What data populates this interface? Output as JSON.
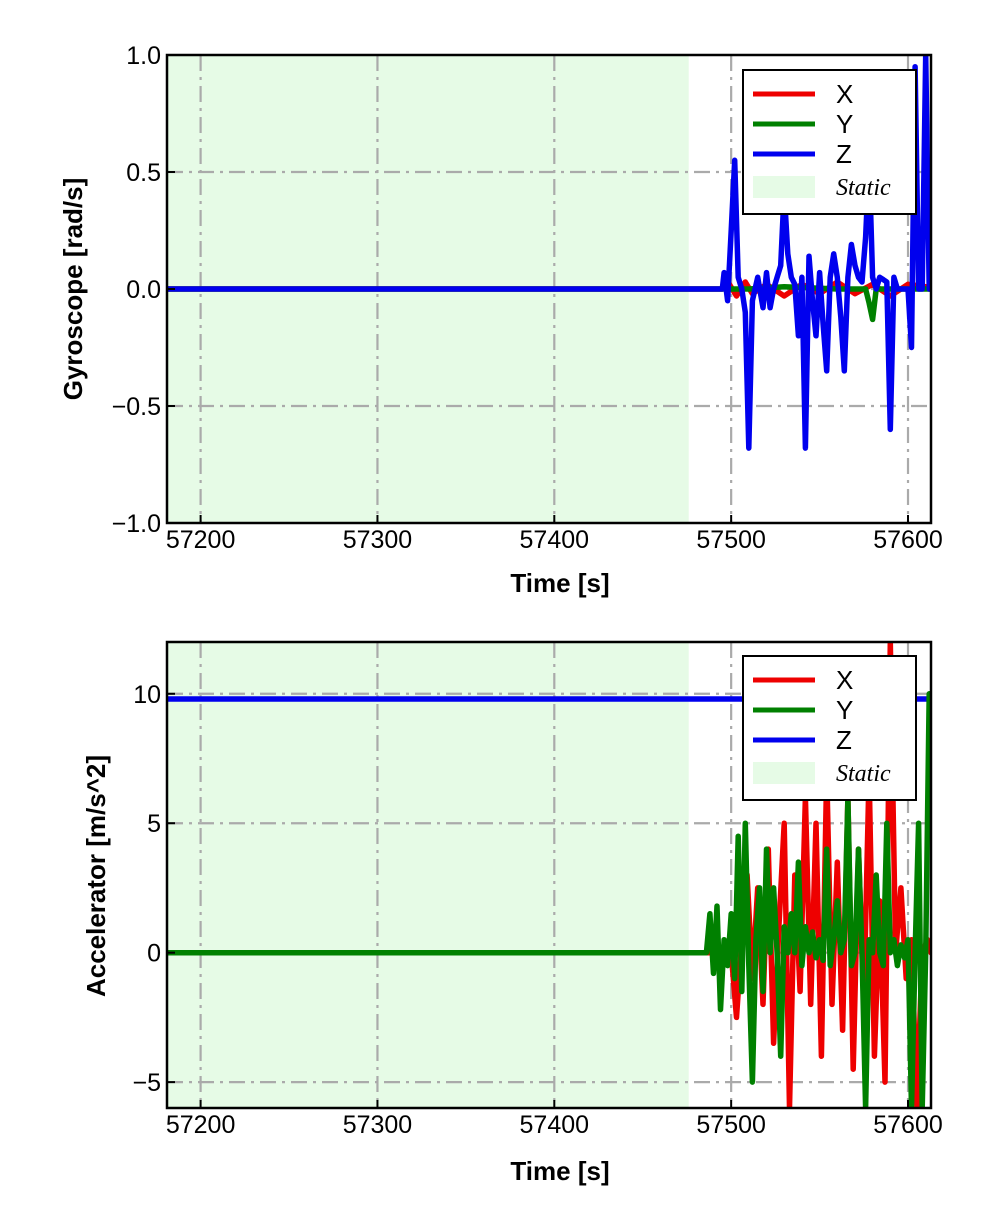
{
  "colors": {
    "X": "#ee0000",
    "Y": "#008000",
    "Z": "#0000ee",
    "static": "#e6fbe6",
    "grid": "#aaaaaa"
  },
  "chart_data": [
    {
      "type": "line",
      "ylabel": "Gyroscope [rad/s]",
      "xlabel": "Time [s]",
      "xlim": [
        57181,
        57613
      ],
      "ylim": [
        -1.0,
        1.0
      ],
      "xticks": [
        57200,
        57300,
        57400,
        57500,
        57600
      ],
      "xtick_labels": [
        "57200",
        "57300",
        "57400",
        "57500",
        "57600"
      ],
      "yticks": [
        -1.0,
        -0.5,
        0.0,
        0.5,
        1.0
      ],
      "ytick_labels": [
        "−1.0",
        "−0.5",
        "0.0",
        "0.5",
        "1.0"
      ],
      "grid": true,
      "legend_position": "top-right",
      "static_region": [
        57181,
        57476
      ],
      "legend": [
        "X",
        "Y",
        "Z",
        "Static"
      ],
      "series": [
        {
          "name": "X",
          "color": "#ee0000",
          "x": [
            57181,
            57495,
            57499,
            57503,
            57508,
            57512,
            57520,
            57530,
            57540,
            57550,
            57560,
            57570,
            57580,
            57590,
            57600,
            57610,
            57612
          ],
          "y": [
            0,
            0,
            0.02,
            -0.03,
            0.03,
            -0.02,
            0.02,
            -0.03,
            0.02,
            -0.02,
            0.03,
            -0.02,
            0.02,
            -0.03,
            0.02,
            0.01,
            0
          ]
        },
        {
          "name": "Y",
          "color": "#008000",
          "x": [
            57181,
            57495,
            57510,
            57530,
            57560,
            57576,
            57578,
            57580,
            57582,
            57595,
            57612
          ],
          "y": [
            0,
            0,
            0,
            0.01,
            0,
            0,
            -0.06,
            -0.13,
            0,
            0,
            0
          ]
        },
        {
          "name": "Z",
          "color": "#0000ee",
          "x": [
            57181,
            57495,
            57496,
            57498,
            57500,
            57502,
            57504,
            57506,
            57508,
            57510,
            57512,
            57515,
            57518,
            57520,
            57522,
            57524,
            57526,
            57528,
            57530,
            57532,
            57534,
            57536,
            57538,
            57540,
            57542,
            57544,
            57546,
            57548,
            57550,
            57552,
            57554,
            57556,
            57558,
            57560,
            57562,
            57564,
            57566,
            57568,
            57570,
            57572,
            57574,
            57576,
            57578,
            57580,
            57582,
            57584,
            57586,
            57588,
            57590,
            57592,
            57594,
            57596,
            57598,
            57600,
            57602,
            57604,
            57606,
            57608,
            57610,
            57612
          ],
          "y": [
            0,
            0,
            0.07,
            -0.05,
            0.25,
            0.55,
            0.05,
            0.0,
            -0.1,
            -0.68,
            -0.05,
            0.05,
            -0.08,
            0.07,
            -0.08,
            0.0,
            0.05,
            0.1,
            0.42,
            0.15,
            0.05,
            0.02,
            -0.2,
            0.05,
            -0.68,
            0.14,
            -0.05,
            -0.2,
            0.07,
            -0.15,
            -0.35,
            0.05,
            0.15,
            0.05,
            -0.12,
            -0.35,
            0.05,
            0.19,
            0.1,
            0.05,
            0.03,
            0.22,
            0.55,
            0.05,
            0.0,
            0.05,
            0.04,
            0.03,
            -0.6,
            0.05,
            0.0,
            0.0,
            0.0,
            0.0,
            -0.25,
            0.95,
            0.0,
            0.0,
            1.0,
            0.0
          ]
        }
      ]
    },
    {
      "type": "line",
      "ylabel": "Accelerator [m/s^2]",
      "xlabel": "Time [s]",
      "xlim": [
        57181,
        57613
      ],
      "ylim": [
        -6.0,
        12.0
      ],
      "xticks": [
        57200,
        57300,
        57400,
        57500,
        57600
      ],
      "xtick_labels": [
        "57200",
        "57300",
        "57400",
        "57500",
        "57600"
      ],
      "yticks": [
        -5,
        0,
        5,
        10
      ],
      "ytick_labels": [
        "−5",
        "0",
        "5",
        "10"
      ],
      "grid": true,
      "legend_position": "top-right",
      "static_region": [
        57181,
        57476
      ],
      "legend": [
        "X",
        "Y",
        "Z",
        "Static"
      ],
      "series": [
        {
          "name": "X",
          "color": "#ee0000",
          "x": [
            57181,
            57500,
            57503,
            57506,
            57509,
            57512,
            57515,
            57518,
            57521,
            57524,
            57527,
            57530,
            57533,
            57536,
            57539,
            57542,
            57545,
            57548,
            57551,
            57554,
            57557,
            57560,
            57563,
            57566,
            57569,
            57572,
            57575,
            57578,
            57581,
            57584,
            57587,
            57590,
            57593,
            57596,
            57599,
            57602,
            57605,
            57608,
            57611,
            57613
          ],
          "y": [
            0,
            0,
            -2.5,
            0.5,
            3.0,
            -1.0,
            2.5,
            -2.0,
            4.0,
            -3.5,
            1.0,
            5.0,
            -6.0,
            3.0,
            -1.5,
            6.0,
            -2.0,
            5.0,
            -4.0,
            7.0,
            -2.0,
            3.5,
            -3.0,
            6.0,
            -4.5,
            4.0,
            -2.0,
            7.0,
            -4.0,
            2.0,
            -5.0,
            12.0,
            0.0,
            2.5,
            -1.0,
            0.5,
            -6.0,
            0.0,
            0.5,
            0.0
          ]
        },
        {
          "name": "Y",
          "color": "#008000",
          "x": [
            57181,
            57486,
            57488,
            57490,
            57492,
            57494,
            57496,
            57498,
            57500,
            57502,
            57504,
            57506,
            57508,
            57510,
            57512,
            57514,
            57516,
            57518,
            57520,
            57522,
            57524,
            57526,
            57528,
            57530,
            57532,
            57534,
            57536,
            57538,
            57540,
            57542,
            57544,
            57546,
            57548,
            57550,
            57552,
            57554,
            57556,
            57558,
            57560,
            57562,
            57564,
            57566,
            57568,
            57570,
            57572,
            57574,
            57576,
            57578,
            57580,
            57582,
            57584,
            57586,
            57588,
            57590,
            57592,
            57594,
            57596,
            57598,
            57600,
            57602,
            57604,
            57606,
            57608,
            57610,
            57612
          ],
          "y": [
            0,
            0,
            1.5,
            -0.8,
            1.8,
            -2.2,
            0.5,
            -0.5,
            1.5,
            -1.0,
            4.5,
            -1.5,
            5.0,
            -0.5,
            -5.0,
            0.5,
            2.5,
            -1.5,
            4.0,
            0.0,
            2.5,
            0.0,
            -4.0,
            1.0,
            0.0,
            1.5,
            0.0,
            3.5,
            -0.5,
            1.0,
            0.0,
            0.8,
            -0.2,
            0.5,
            -0.3,
            4.0,
            -0.5,
            0.5,
            2.0,
            0.0,
            0.5,
            6.0,
            -0.5,
            0.0,
            4.0,
            0.0,
            -6.0,
            0.5,
            0.0,
            3.0,
            0.0,
            -0.5,
            5.0,
            0.0,
            0.5,
            -0.5,
            0.3,
            -0.2,
            0.5,
            -6.0,
            0.0,
            5.0,
            -6.0,
            0.0,
            10.0
          ]
        },
        {
          "name": "Z",
          "color": "#0000ee",
          "x": [
            57181,
            57600,
            57610,
            57613
          ],
          "y": [
            9.8,
            9.8,
            9.8,
            9.8
          ]
        }
      ]
    }
  ]
}
